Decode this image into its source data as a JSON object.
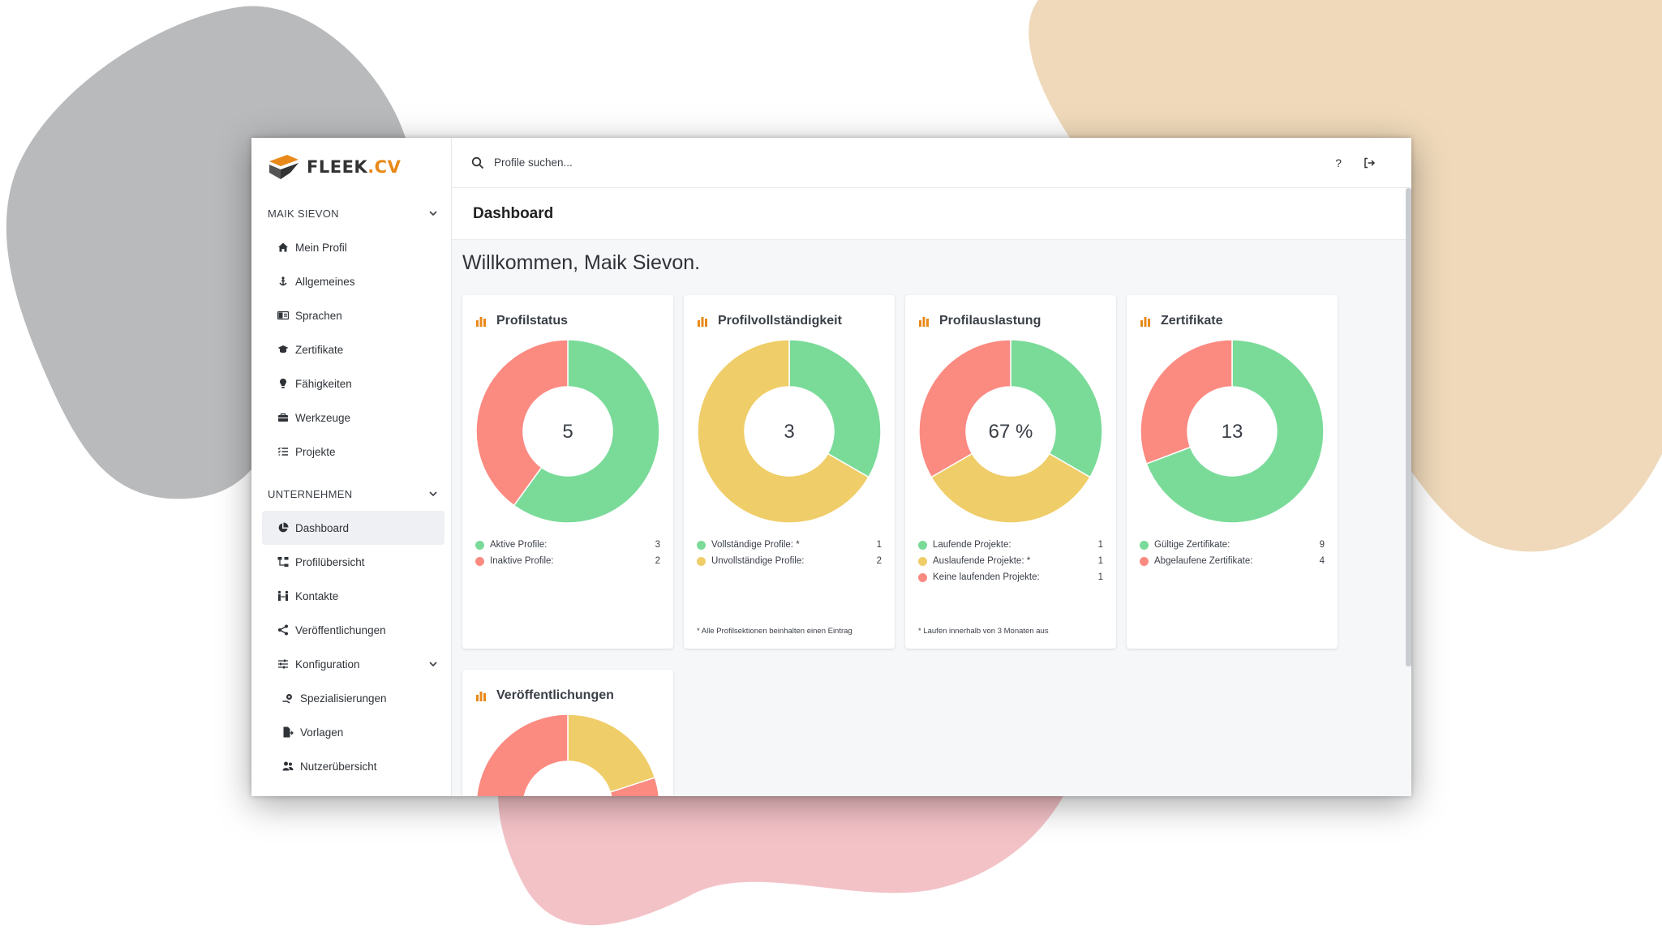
{
  "brand": {
    "logo_text": "FLEEK",
    "logo_tld": ".CV",
    "accent": "#e8891a"
  },
  "colors": {
    "green": "#7adb99",
    "red": "#fb8a81",
    "yellow": "#efcd68",
    "orange": "#e8891a"
  },
  "sidebar": {
    "section_user": "MAIK SIEVON",
    "user_items": [
      {
        "label": "Mein Profil",
        "icon": "home-icon"
      },
      {
        "label": "Allgemeines",
        "icon": "anchor-icon"
      },
      {
        "label": "Sprachen",
        "icon": "language-icon"
      },
      {
        "label": "Zertifikate",
        "icon": "graduation-cap-icon"
      },
      {
        "label": "Fähigkeiten",
        "icon": "lightbulb-icon"
      },
      {
        "label": "Werkzeuge",
        "icon": "toolbox-icon"
      },
      {
        "label": "Projekte",
        "icon": "list-icon"
      }
    ],
    "section_company": "UNTERNEHMEN",
    "company_items": [
      {
        "label": "Dashboard",
        "icon": "pie-chart-icon"
      },
      {
        "label": "Profilübersicht",
        "icon": "sitemap-icon"
      },
      {
        "label": "Kontakte",
        "icon": "people-arrows-icon"
      },
      {
        "label": "Veröffentlichungen",
        "icon": "share-icon"
      },
      {
        "label": "Konfiguration",
        "icon": "sliders-icon"
      }
    ],
    "config_items": [
      {
        "label": "Spezialisierungen",
        "icon": "gear-hand-icon"
      },
      {
        "label": "Vorlagen",
        "icon": "file-export-icon"
      },
      {
        "label": "Nutzerübersicht",
        "icon": "users-icon"
      }
    ]
  },
  "topbar": {
    "search_placeholder": "Profile suchen...",
    "help_label": "?"
  },
  "page": {
    "title": "Dashboard",
    "welcome": "Willkommen, Maik Sievon."
  },
  "chart_data": [
    {
      "type": "pie",
      "title": "Profilstatus",
      "center_label": "5",
      "categories": [
        "Aktive Profile:",
        "Inaktive Profile:"
      ],
      "values": [
        3,
        2
      ],
      "colors": [
        "#7adb99",
        "#fb8a81"
      ]
    },
    {
      "type": "pie",
      "title": "Profilvollständigkeit",
      "center_label": "3",
      "categories": [
        "Vollständige Profile: *",
        "Unvollständige Profile:"
      ],
      "values": [
        1,
        2
      ],
      "colors": [
        "#7adb99",
        "#efcd68"
      ],
      "footnote": "* Alle Profilsektionen beinhalten einen Eintrag"
    },
    {
      "type": "pie",
      "title": "Profilauslastung",
      "center_label": "67 %",
      "categories": [
        "Laufende Projekte:",
        "Auslaufende Projekte: *",
        "Keine laufenden Projekte:"
      ],
      "values": [
        1,
        1,
        1
      ],
      "colors": [
        "#7adb99",
        "#efcd68",
        "#fb8a81"
      ],
      "footnote": "* Laufen innerhalb von 3 Monaten aus"
    },
    {
      "type": "pie",
      "title": "Zertifikate",
      "center_label": "13",
      "categories": [
        "Gültige Zertifikate:",
        "Abgelaufene Zertifikate:"
      ],
      "values": [
        9,
        4
      ],
      "colors": [
        "#7adb99",
        "#fb8a81"
      ]
    },
    {
      "type": "pie",
      "title": "Veröffentlichungen",
      "values": [
        2,
        1,
        7
      ],
      "colors": [
        "#efcd68",
        "#fb8a81",
        "#fb8a81"
      ]
    }
  ]
}
